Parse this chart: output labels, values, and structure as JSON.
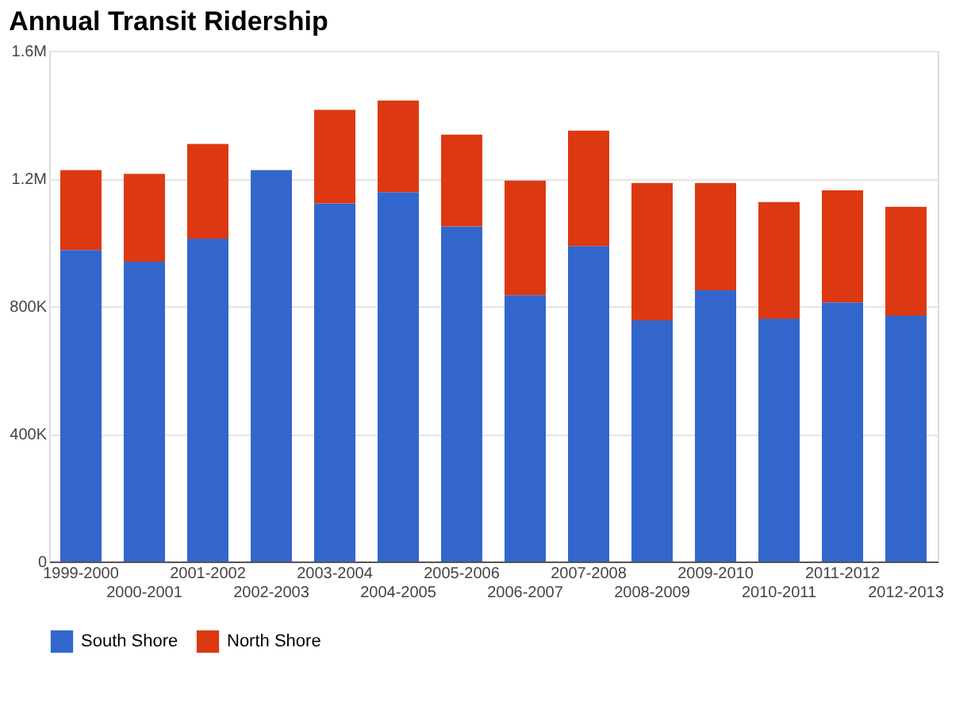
{
  "chart_data": {
    "type": "bar",
    "title": "Annual Transit Ridership",
    "stacked": true,
    "categories": [
      "1999-2000",
      "2000-2001",
      "2001-2002",
      "2002-2003",
      "2003-2004",
      "2004-2005",
      "2005-2006",
      "2006-2007",
      "2007-2008",
      "2008-2009",
      "2009-2010",
      "2010-2011",
      "2011-2012",
      "2012-2013"
    ],
    "series": [
      {
        "name": "South Shore",
        "color": "#3366cc",
        "values": [
          976000,
          939000,
          1011000,
          1226000,
          1122000,
          1157000,
          1050000,
          834000,
          988000,
          755000,
          850000,
          760000,
          812000,
          770000
        ]
      },
      {
        "name": "North Shore",
        "color": "#dc3912",
        "values": [
          250000,
          275000,
          297000,
          null,
          293000,
          287000,
          287000,
          359000,
          362000,
          431000,
          336000,
          366000,
          351000,
          341000
        ]
      }
    ],
    "ylim": [
      0,
      1600000
    ],
    "yticks": [
      0,
      {
        "value": 400000,
        "label": "400K"
      },
      {
        "value": 800000,
        "label": "800K"
      },
      {
        "value": 1200000,
        "label": "1.2M"
      },
      {
        "value": 1600000,
        "label": "1.6M"
      }
    ],
    "grid": "y",
    "legend": "bottom"
  }
}
